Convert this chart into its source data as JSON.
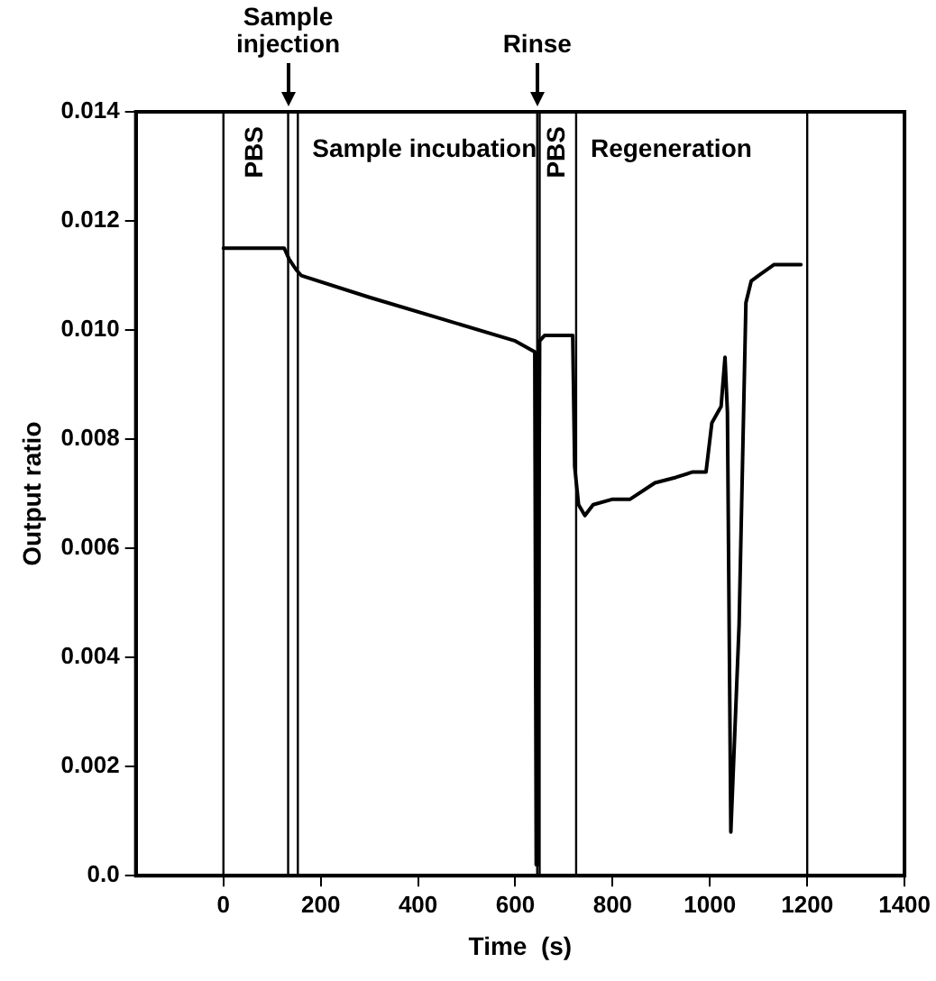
{
  "chart_data": {
    "type": "line",
    "xlabel": "Time  (s)",
    "ylabel": "Output ratio",
    "xlim": [
      -180,
      1400
    ],
    "xticks": [
      0,
      200,
      400,
      600,
      800,
      1000,
      1200,
      1400
    ],
    "ylim": [
      0,
      0.014
    ],
    "yticks": [
      {
        "value": 0,
        "label": "0.0"
      },
      0.002,
      0.004,
      0.006,
      0.008,
      {
        "value": 0.01,
        "label": "0.010"
      },
      0.012,
      0.014
    ],
    "grid": false,
    "legend": false,
    "marker": "none",
    "line_style": "solid",
    "series": [
      {
        "color": "#000000",
        "x": [
          0,
          20,
          60,
          100,
          125,
          135,
          150,
          160,
          300,
          450,
          600,
          640,
          643,
          646,
          650,
          660,
          700,
          718,
          722,
          730,
          743,
          760,
          800,
          836,
          887,
          930,
          965,
          992,
          1004,
          1023,
          1031,
          1036,
          1043,
          1060,
          1074,
          1085,
          1100,
          1132,
          1187
        ],
        "values": [
          0.0115,
          0.0115,
          0.0115,
          0.0115,
          0.0115,
          0.0113,
          0.0111,
          0.011,
          0.0106,
          0.0102,
          0.0098,
          0.0096,
          0.0002,
          0.0002,
          0.0098,
          0.0099,
          0.0099,
          0.0099,
          0.0075,
          0.0068,
          0.0066,
          0.0068,
          0.0069,
          0.0069,
          0.0072,
          0.0073,
          0.0074,
          0.0074,
          0.0083,
          0.0086,
          0.0095,
          0.0085,
          0.0008,
          0.0046,
          0.0105,
          0.0109,
          0.011,
          0.0112,
          0.0112
        ]
      }
    ],
    "ref_lines": [
      {
        "axis": "x",
        "value": 0,
        "label": "PBS"
      },
      {
        "axis": "x",
        "value": 133
      },
      {
        "axis": "x",
        "value": 153,
        "label": "Sample incubation"
      },
      {
        "axis": "x",
        "value": 645
      },
      {
        "axis": "x",
        "value": 650,
        "label": "PBS"
      },
      {
        "axis": "x",
        "value": 725,
        "label": "Regeneration"
      },
      {
        "axis": "x",
        "value": 1200
      }
    ],
    "annotations": [
      "Sample injection",
      "Rinse"
    ]
  }
}
